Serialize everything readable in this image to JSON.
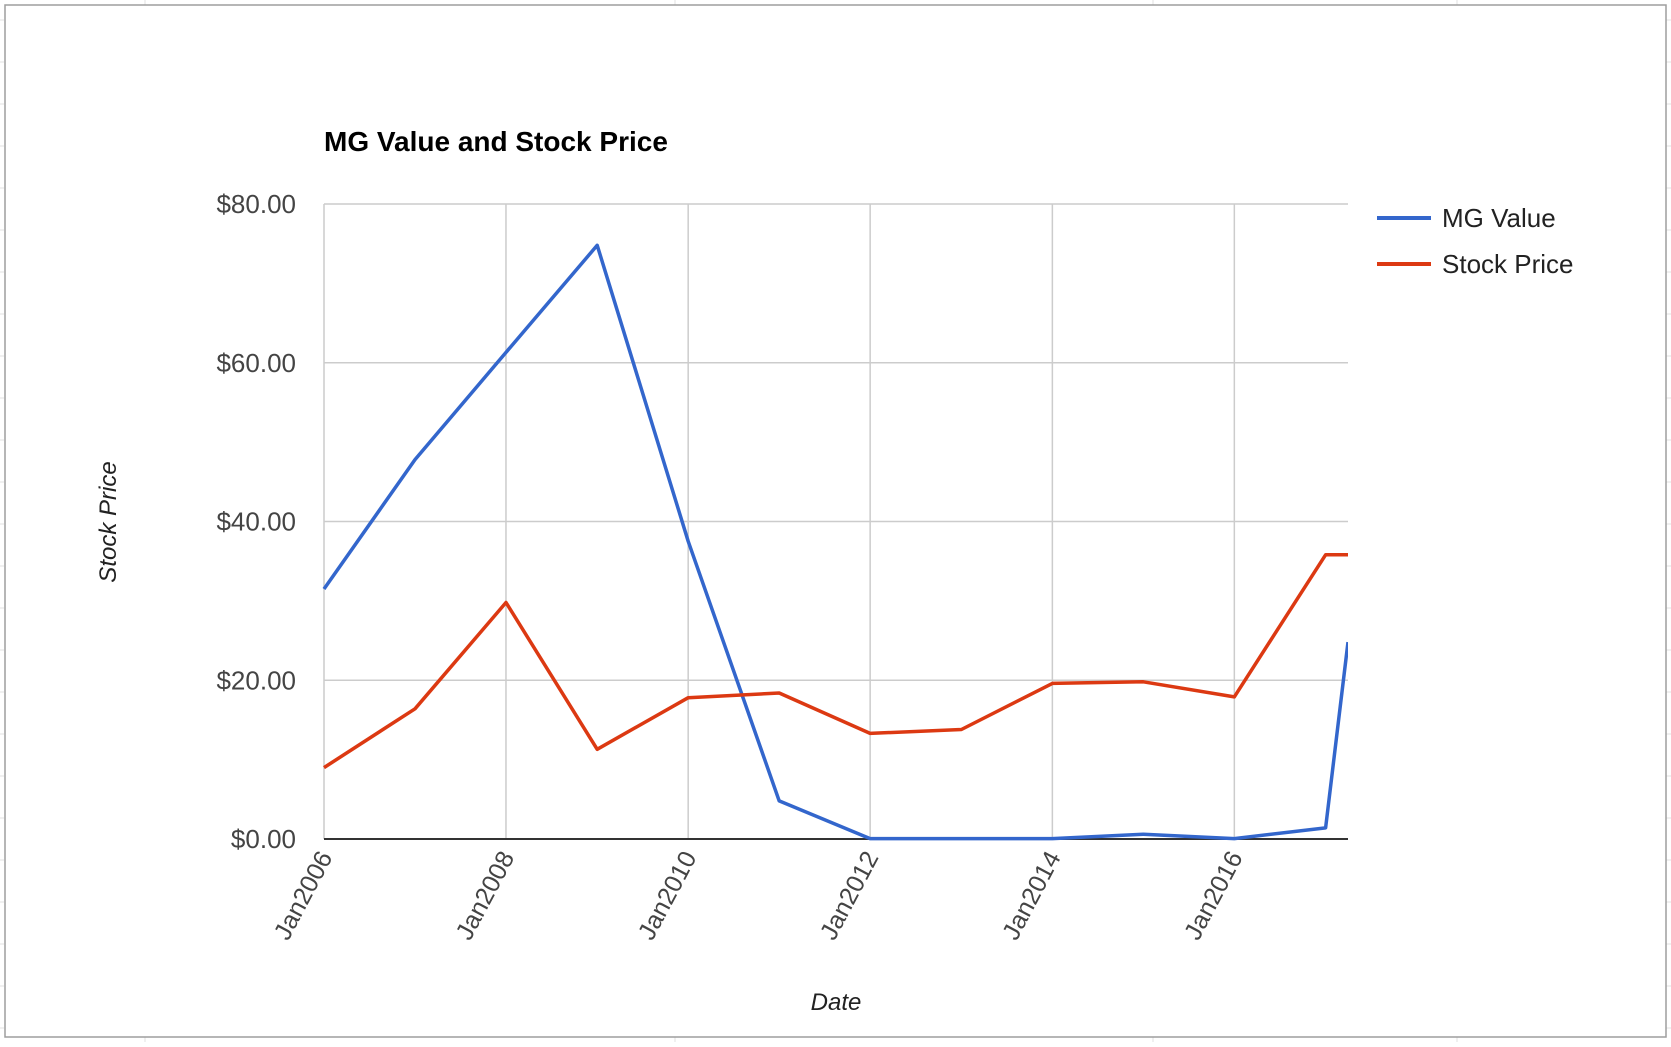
{
  "chart_data": {
    "type": "line",
    "title": "MG Value and Stock Price",
    "xlabel": "Date",
    "ylabel": "Stock Price",
    "x_tick_labels": [
      "Jan2006",
      "Jan2008",
      "Jan2010",
      "Jan2012",
      "Jan2014",
      "Jan2016"
    ],
    "y_tick_labels": [
      "$0.00",
      "$20.00",
      "$40.00",
      "$60.00",
      "$80.00"
    ],
    "y_ticks": [
      0,
      20,
      40,
      60,
      80
    ],
    "ylim": [
      0,
      80
    ],
    "xlim": [
      "2006-01-01",
      "2017-04-01"
    ],
    "grid": true,
    "legend_position": "right",
    "x": [
      "2006-01-01",
      "2007-01-01",
      "2008-01-01",
      "2009-01-01",
      "2010-01-01",
      "2011-01-01",
      "2012-01-01",
      "2013-01-01",
      "2014-01-01",
      "2015-01-01",
      "2016-01-01",
      "2017-01-01",
      "2017-04-01"
    ],
    "series": [
      {
        "name": "MG Value",
        "color": "#3366cc",
        "values": [
          31.5,
          47.8,
          61.3,
          74.8,
          37.5,
          4.8,
          0.05,
          0.05,
          0.05,
          0.6,
          0.05,
          1.4,
          24.8
        ]
      },
      {
        "name": "Stock Price",
        "color": "#dc3912",
        "values": [
          9.0,
          16.4,
          29.8,
          11.3,
          17.8,
          18.4,
          13.3,
          13.8,
          19.6,
          19.8,
          17.9,
          35.8,
          35.8
        ]
      }
    ]
  }
}
